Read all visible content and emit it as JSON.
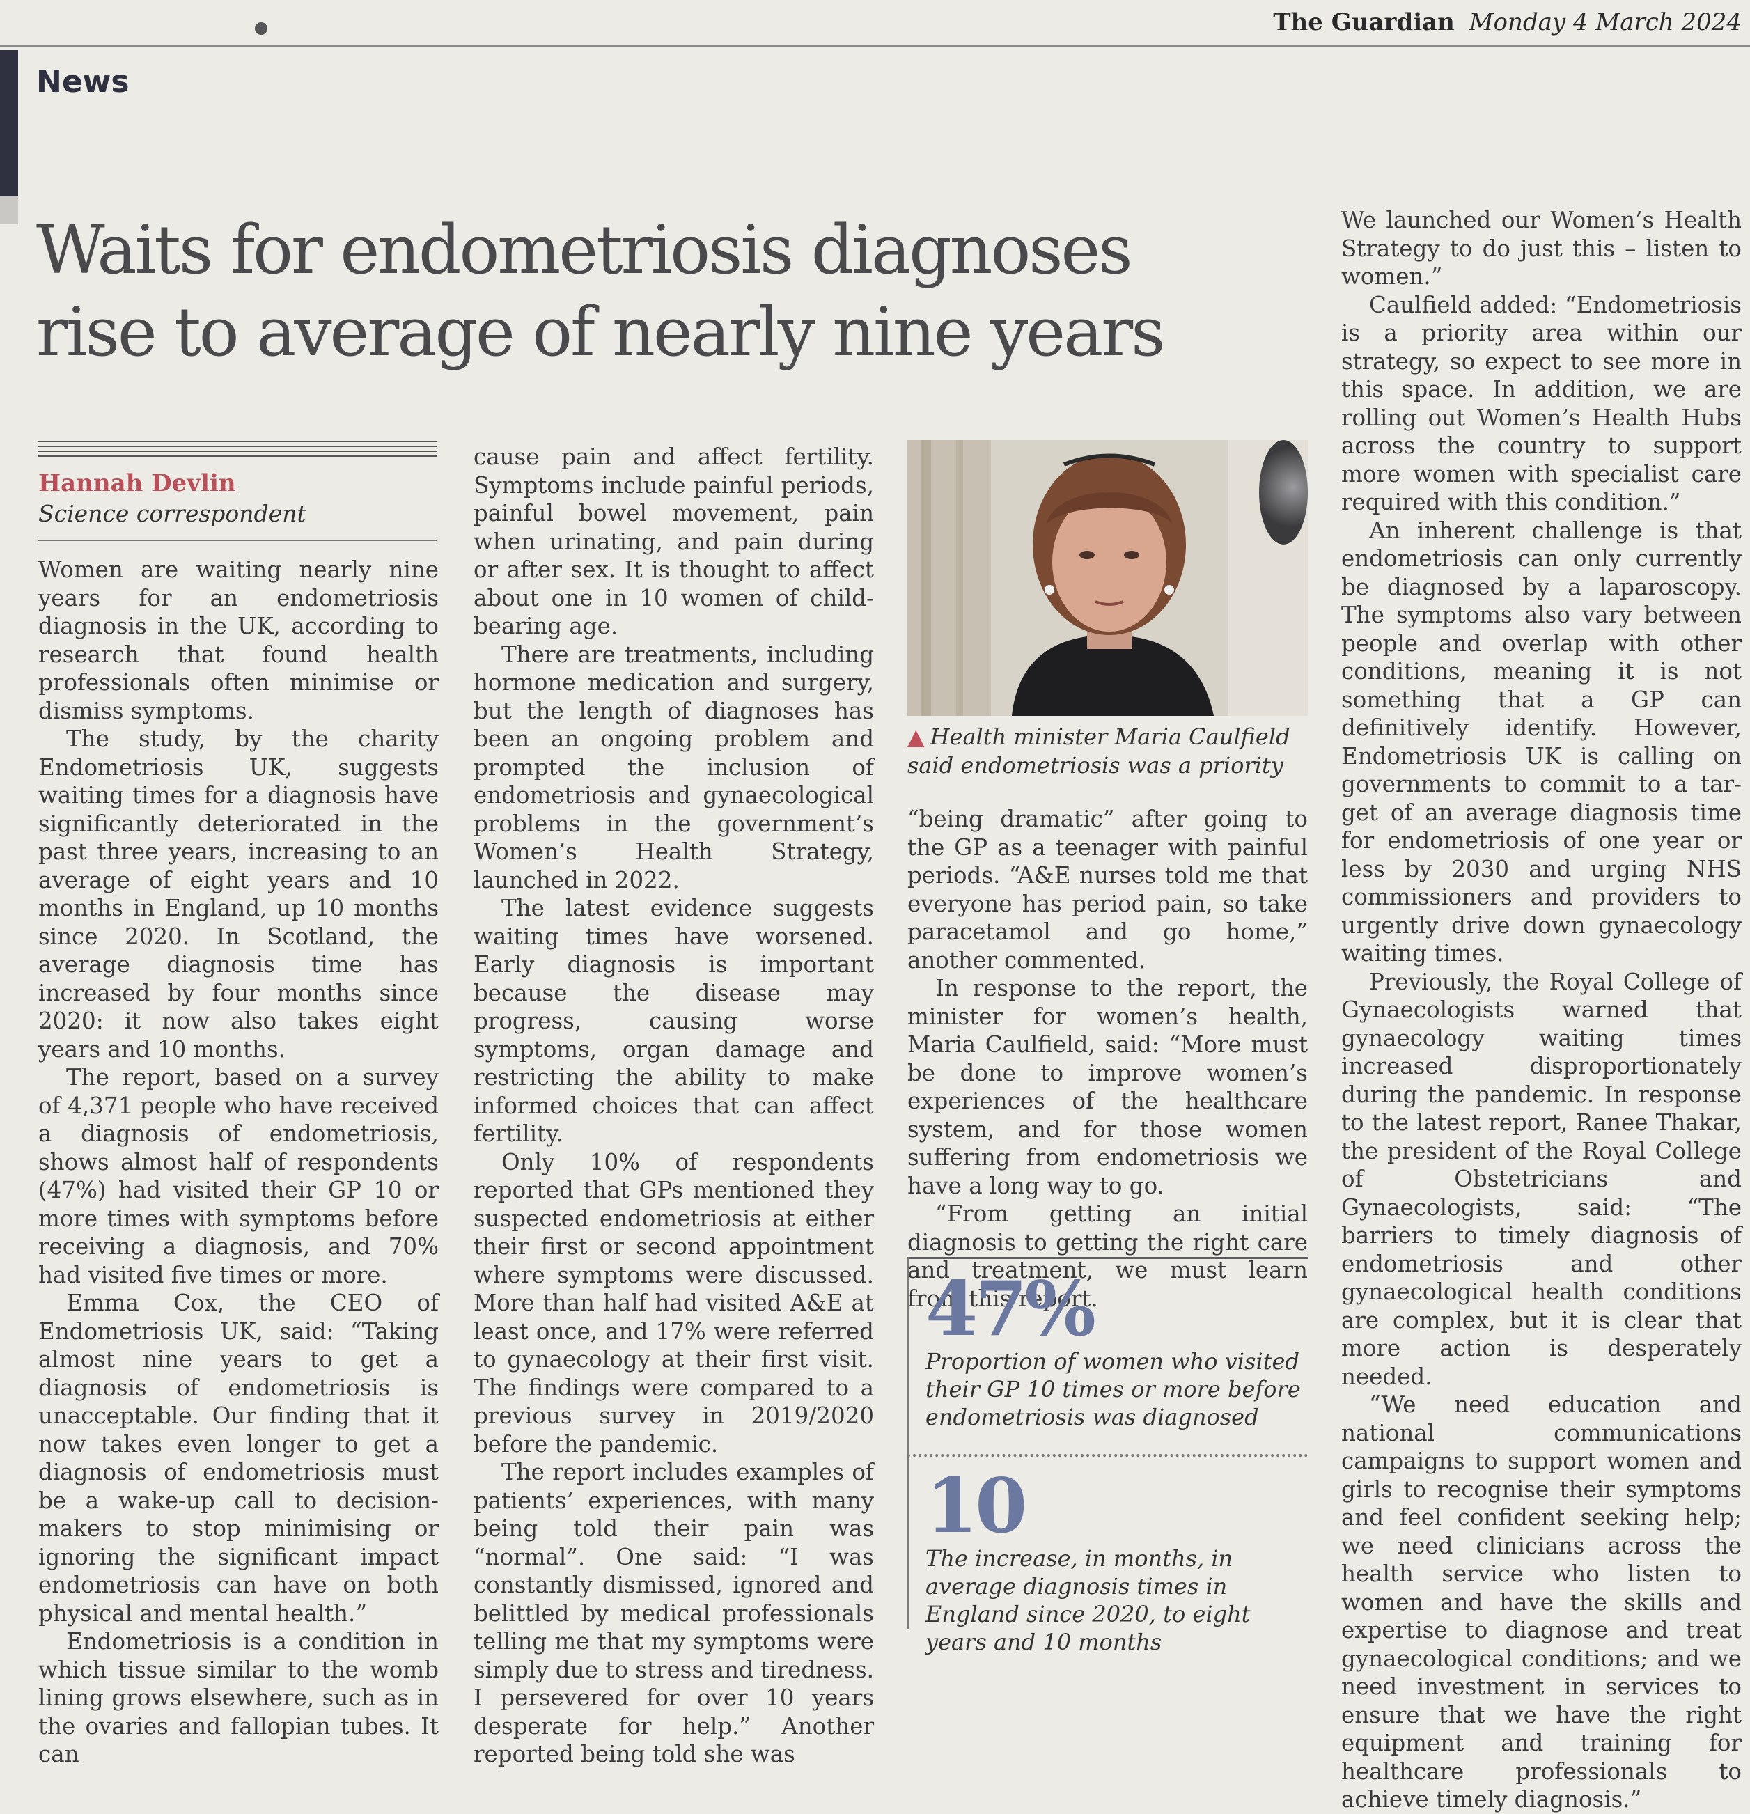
{
  "masthead": {
    "paper": "The Guardian",
    "date": "Monday 4 March 2024"
  },
  "section": "News",
  "headline": "Waits for endometriosis diagnoses rise to average of nearly nine years",
  "byline": {
    "name": "Hannah Devlin",
    "title": "Science correspondent"
  },
  "photo": {
    "caption": "Health minister Maria Caulfield said endometriosis was a priority"
  },
  "stats": [
    {
      "number": "47%",
      "caption": "Proportion of women who visited their GP 10 times or more before endometriosis was diagnosed"
    },
    {
      "number": "10",
      "caption": "The increase, in months, in average diagnosis times in England since 2020, to eight years and 10 months"
    }
  ],
  "columns": {
    "col1": [
      "Women are waiting nearly nine years for an endometriosis diagnosis in the UK, according to research that found health professionals often minimise or dismiss symptoms.",
      "The study, by the charity Endome­triosis UK, suggests waiting times for a diagnosis have significantly dete­riorated in the past three years, increasing to an average of eight years and 10 months in England, up 10 months since 2020. In Scotland, the average diagnosis time has increased by four months since 2020: it now also takes eight years and 10 months.",
      "The report, based on a survey of 4,371 people who have received a diagnosis of endometriosis, shows almost half of respondents (47%) had visited their GP 10 or more times with symptoms before receiving a diagno­sis, and 70% had visited five times or more.",
      "Emma Cox, the CEO of Endome­triosis UK, said: “Taking almost nine years to get a diagnosis of endome­triosis is unacceptable. Our finding that it now takes even longer to get a diagnosis of endometriosis must be a wake-up call to decision-makers to stop minimising or ignoring the sig­nificant impact endometriosis can have on both physical and mental health.”",
      "Endometriosis is a condition in which tissue similar to the womb lin­ing grows elsewhere, such as in the ovaries and fallopian tubes. It can"
    ],
    "col2": [
      "cause pain and affect fertility. Symp­toms include painful periods, painful bowel movement, pain when urinat­ing, and pain during or after sex. It is thought to affect about one in 10 women of child-bearing age.",
      "There are treatments, including hormone medication and surgery, but the length of diagnoses has been an ongoing problem and prompted the inclusion of endometriosis and gynaecological problems in the gov­ernment’s Women’s Health Strategy, launched in 2022.",
      "The latest evidence suggests waiting times have worsened. Early diagnosis is important because the disease may progress, causing worse symptoms, organ damage and restricting the ability to make informed choices that can affect fertility.",
      "Only 10% of respondents reported that GPs mentioned they suspected endometriosis at either their first or second appointment where symp­toms were discussed. More than half had visited A&E at least once, and 17% were referred to gynaecol­ogy at their first visit. The findings were compared to a previous survey in 2019/2020 before the pandemic.",
      "The report includes examples of patients’ experiences, with many being told their pain was “normal”. One said: “I was constantly dis­missed, ignored and belittled by medical professionals telling me that my symptoms were simply due to stress and tiredness. I persevered for over 10 years desperate for help.” Another reported being told she was"
    ],
    "col3": [
      "“being dramatic” after going to the GP as a teenager with painful periods. “A&E nurses told me that everyone has period pain, so take paracetamol and go home,” another commented.",
      "In response to the report, the minister for women’s health, Maria Caulfield, said: “More must be done to improve women’s experiences of the healthcare system, and for those women suffering from endometrio­sis we have a long way to go.",
      "“From getting an initial diagnosis to getting the right care and treat­ment, we must learn from this report."
    ],
    "col4": [
      "We launched our Women’s Health Strategy to do just this – listen to women.”",
      "Caulfield added: “Endometriosis is a priority area within our strategy, so expect to see more in this space. In addition, we are rolling out Wom­en’s Health Hubs across the country to support more women with special­ist care required with this condition.”",
      "An inherent challenge is that endometriosis can only currently be diagnosed by a laparoscopy. The symptoms also vary between people and overlap with other conditions, meaning it is not something that a GP can definitively identify. How­ever, Endometriosis UK is calling on governments to commit to a tar­get of an average diagnosis time for endometriosis of one year or less by 2030 and urging NHS commissioners and providers to urgently drive down gynaecology waiting times.",
      "Previously, the Royal College of Gynaecologists warned that gynae­cology waiting times increased disproportionately during the pan­demic. In response to the latest report, Ranee Thakar, the president of the Royal College of Obstetricians and Gynaecologists, said: “The barriers to timely diagnosis of endo­metriosis and other gynaecological health conditions are complex, but it is clear that more action is desper­ately needed.",
      "“We need education and national communications campaigns to support women and girls to recognise their symptoms and feel confident seeking help; we need clinicians across the health service who lis­ten to women and have the skills and expertise to diagnose and treat gynaecological conditions; and we need investment in services to ensure that we have the right equipment and training for healthcare professionals to achieve timely diagnosis.”"
    ]
  }
}
